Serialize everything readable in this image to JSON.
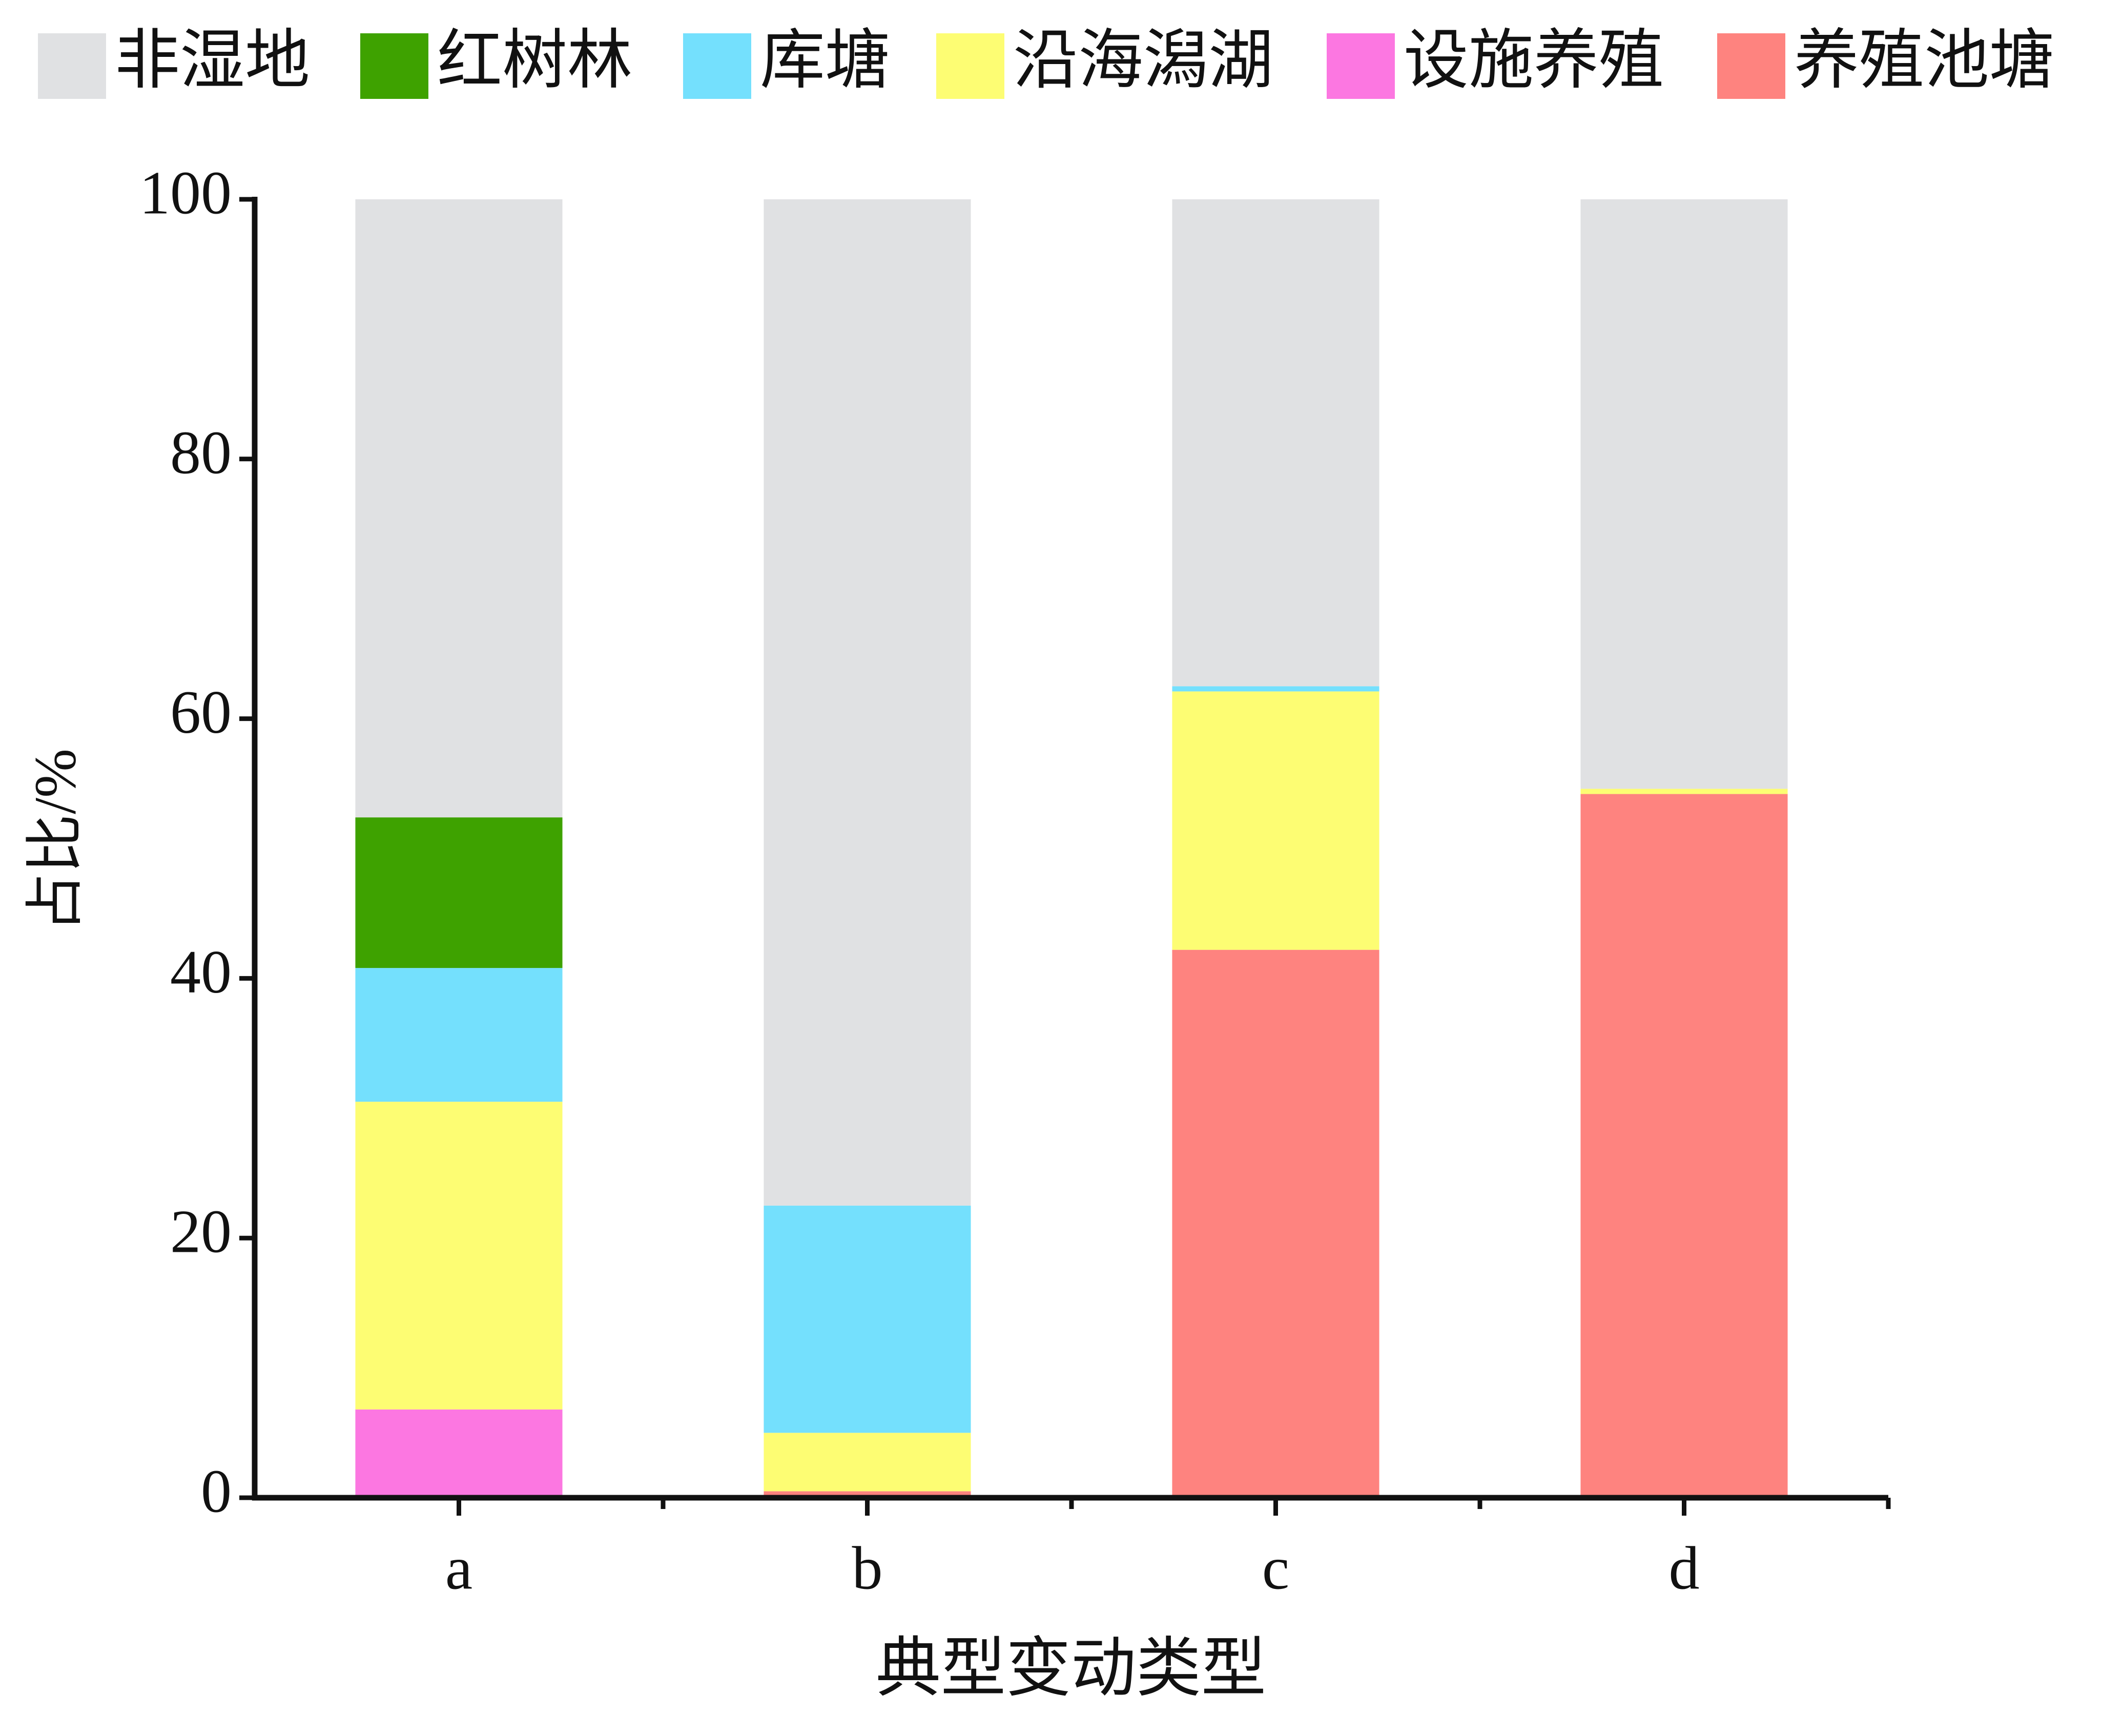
{
  "chart_data": {
    "type": "stacked_bar",
    "x_label": "典型变动类型",
    "y_label": "占比/%",
    "categories": [
      "a",
      "b",
      "c",
      "d"
    ],
    "series": [
      {
        "name": "非湿地",
        "color": "#e0e1e3",
        "values": [
          47.6,
          77.5,
          37.5,
          45.4
        ]
      },
      {
        "name": "红树林",
        "color": "#3ea200",
        "values": [
          11.6,
          0,
          0,
          0
        ]
      },
      {
        "name": "库塘",
        "color": "#74e0fd",
        "values": [
          10.3,
          17.5,
          0.4,
          0
        ]
      },
      {
        "name": "沿海潟湖",
        "color": "#fdfd73",
        "values": [
          23.7,
          4.5,
          19.9,
          0.4
        ]
      },
      {
        "name": "设施养殖",
        "color": "#fc77e1",
        "values": [
          6.8,
          0,
          0,
          0
        ]
      },
      {
        "name": "养殖池塘",
        "color": "#fe837f",
        "values": [
          0,
          0.5,
          42.2,
          54.2
        ]
      }
    ],
    "ylim": [
      0,
      100
    ],
    "yticks": [
      0,
      20,
      40,
      60,
      80,
      100
    ]
  }
}
